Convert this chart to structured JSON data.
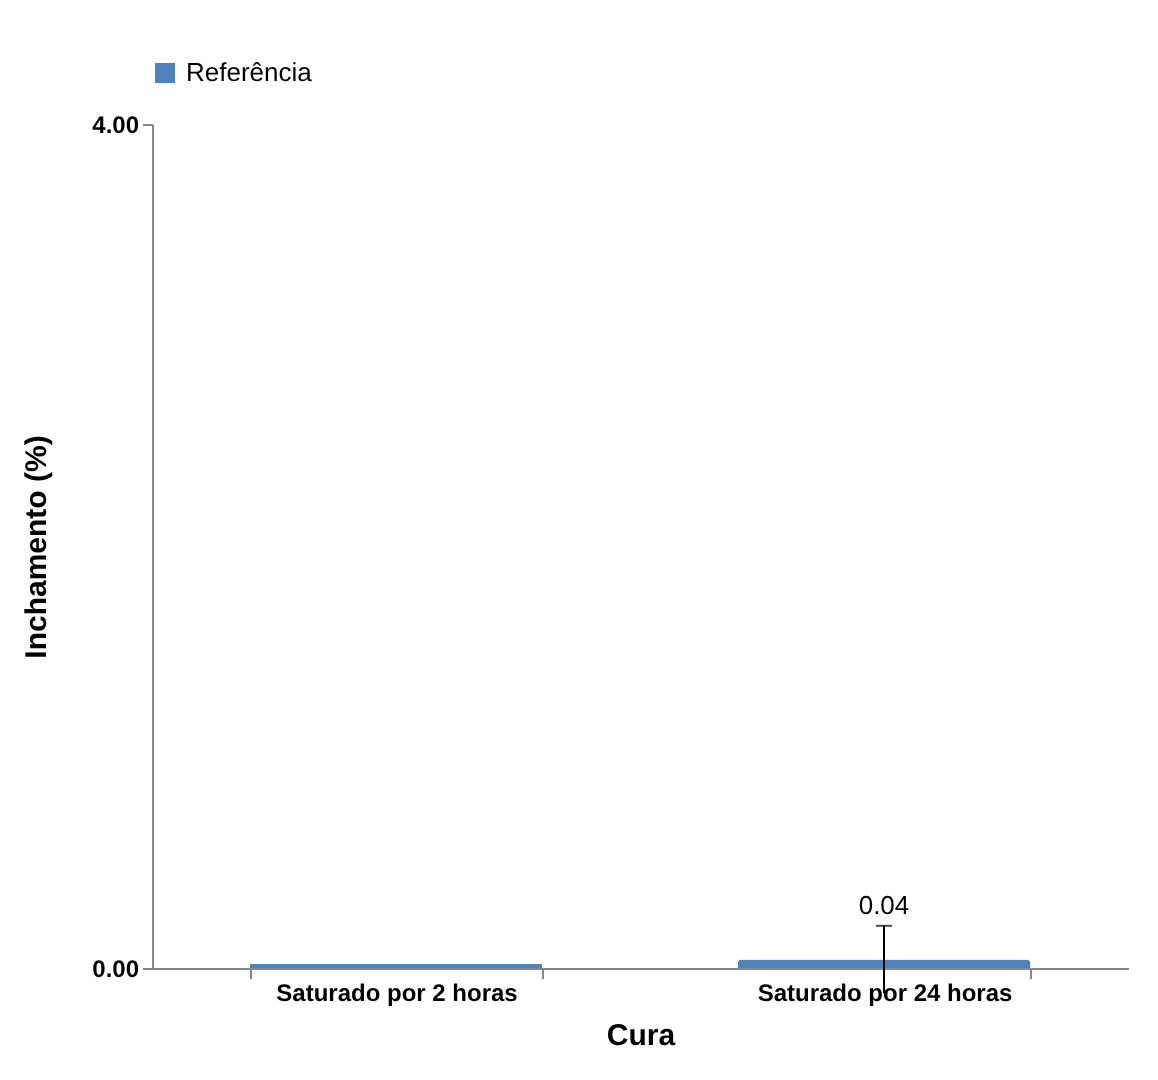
{
  "chart_data": {
    "type": "bar",
    "xlabel": "Cura",
    "ylabel": "Inchamento (%)",
    "categories": [
      "Saturado por 2 horas",
      "Saturado por 24 horas"
    ],
    "series": [
      {
        "name": "Referência",
        "color": "#4f81bd",
        "values": [
          0.02,
          0.04
        ],
        "errors": [
          null,
          0.16
        ],
        "value_labels": [
          null,
          "0.04"
        ]
      }
    ],
    "ylim": [
      0,
      4
    ],
    "yticks": [
      {
        "value": 0,
        "label": "0.00"
      },
      {
        "value": 4,
        "label": "4.00"
      }
    ],
    "grid": false,
    "legend": "top"
  }
}
